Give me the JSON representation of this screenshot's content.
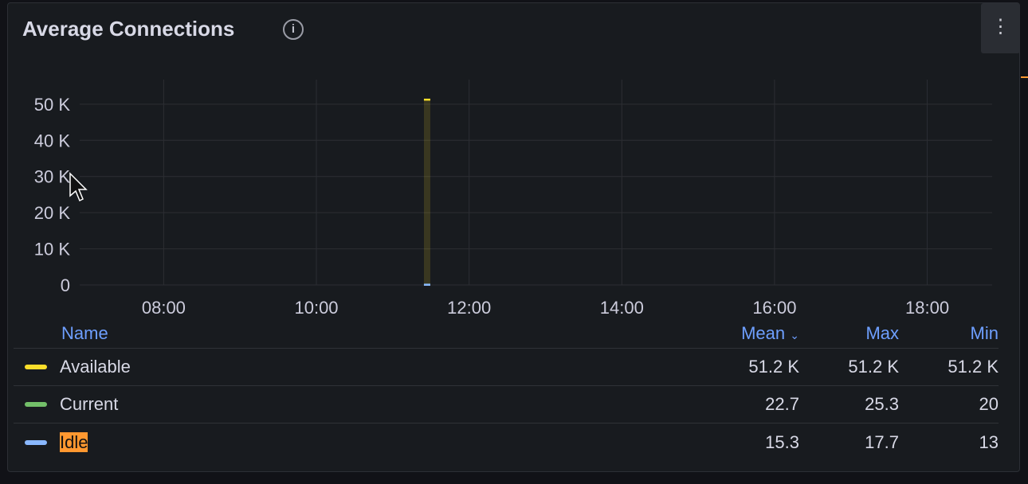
{
  "panel": {
    "title": "Average Connections",
    "info_icon": "info-circle-icon",
    "menu_icon": "kebab-menu-icon"
  },
  "chart_data": {
    "type": "bar",
    "title": "Average Connections",
    "xlabel": "",
    "ylabel": "",
    "x_ticks": [
      "08:00",
      "10:00",
      "12:00",
      "14:00",
      "16:00",
      "18:00"
    ],
    "y_ticks": [
      "0",
      "10 K",
      "20 K",
      "30 K",
      "40 K",
      "50 K"
    ],
    "xlim": [
      "06:54",
      "18:51"
    ],
    "ylim": [
      0,
      56800
    ],
    "grid": true,
    "series": [
      {
        "name": "Available",
        "color": "#fade2a",
        "points": [
          {
            "x": "11:27",
            "y": 51200
          }
        ]
      },
      {
        "name": "Current",
        "color": "#73bf69",
        "points": [
          {
            "x": "11:27",
            "y": 22.7
          }
        ]
      },
      {
        "name": "Idle",
        "color": "#8ab8ff",
        "points": [
          {
            "x": "11:27",
            "y": 15.3
          }
        ]
      }
    ]
  },
  "legend": {
    "headers": {
      "name": "Name",
      "mean": "Mean",
      "sort_icon": "chevron-down-icon",
      "sort_glyph": "⌄",
      "max": "Max",
      "min": "Min"
    },
    "rows": [
      {
        "name": "Available",
        "color": "#fade2a",
        "mean": "51.2 K",
        "max": "51.2 K",
        "min": "51.2 K"
      },
      {
        "name": "Current",
        "color": "#73bf69",
        "mean": "22.7",
        "max": "25.3",
        "min": "20"
      },
      {
        "name": "Idle",
        "color": "#8ab8ff",
        "mean": "15.3",
        "max": "17.7",
        "min": "13",
        "highlighted": true
      }
    ]
  }
}
